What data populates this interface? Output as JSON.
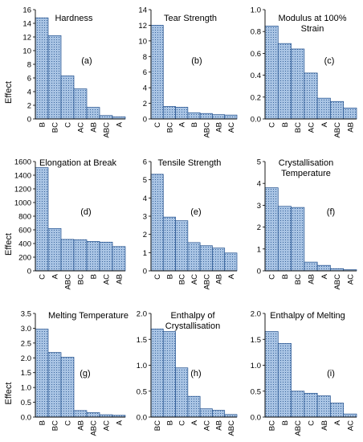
{
  "theme": {
    "bar_fill": "#a9c4e4",
    "bar_stroke": "#1f4e8c",
    "bar_pattern": "dotted"
  },
  "chart_data": [
    {
      "type": "bar",
      "title": [
        "Hardness"
      ],
      "panel_label": "(a)",
      "ylabel": "Effect",
      "ylim": [
        0,
        16
      ],
      "yticks": [
        "0",
        "2",
        "4",
        "6",
        "8",
        "10",
        "12",
        "14",
        "16"
      ],
      "categories": [
        "B",
        "BC",
        "C",
        "AC",
        "AB",
        "ABC",
        "A"
      ],
      "values": [
        14.8,
        12.2,
        6.3,
        4.4,
        1.7,
        0.5,
        0.3
      ]
    },
    {
      "type": "bar",
      "title": [
        "Tear Strength"
      ],
      "panel_label": "(b)",
      "ylabel": "",
      "ylim": [
        0,
        14
      ],
      "yticks": [
        "0",
        "2",
        "4",
        "6",
        "8",
        "10",
        "12",
        "14"
      ],
      "categories": [
        "C",
        "BC",
        "A",
        "B",
        "ABC",
        "AB",
        "AC"
      ],
      "values": [
        12.0,
        1.6,
        1.5,
        0.8,
        0.7,
        0.55,
        0.5
      ]
    },
    {
      "type": "bar",
      "title": [
        "Modulus at 100%",
        "Strain"
      ],
      "panel_label": "(c)",
      "ylabel": "",
      "ylim": [
        0,
        1.0
      ],
      "yticks": [
        "0.0",
        "0.2",
        "0.4",
        "0.6",
        "0.8",
        "1.0"
      ],
      "categories": [
        "C",
        "B",
        "BC",
        "AC",
        "A",
        "ABC",
        "AB"
      ],
      "values": [
        0.85,
        0.69,
        0.64,
        0.42,
        0.19,
        0.16,
        0.1
      ]
    },
    {
      "type": "bar",
      "title": [
        "Elongation at Break"
      ],
      "panel_label": "(d)",
      "ylabel": "Effect",
      "ylim": [
        0,
        1600
      ],
      "yticks": [
        "0",
        "200",
        "400",
        "600",
        "800",
        "1000",
        "1200",
        "1400",
        "1600"
      ],
      "categories": [
        "C",
        "A",
        "ABC",
        "BC",
        "B",
        "AC",
        "AB"
      ],
      "values": [
        1510,
        620,
        460,
        455,
        430,
        420,
        355
      ]
    },
    {
      "type": "bar",
      "title": [
        "Tensile Strength"
      ],
      "panel_label": "(e)",
      "ylabel": "",
      "ylim": [
        0,
        6
      ],
      "yticks": [
        "0",
        "1",
        "2",
        "3",
        "4",
        "5",
        "6"
      ],
      "categories": [
        "C",
        "B",
        "BC",
        "AC",
        "ABC",
        "AB",
        "A"
      ],
      "values": [
        5.3,
        2.95,
        2.75,
        1.55,
        1.38,
        1.25,
        0.98
      ]
    },
    {
      "type": "bar",
      "title": [
        "Crystallisation",
        "Temperature"
      ],
      "panel_label": "(f)",
      "ylabel": "",
      "ylim": [
        0,
        5
      ],
      "yticks": [
        "0",
        "1",
        "2",
        "3",
        "4",
        "5"
      ],
      "categories": [
        "C",
        "B",
        "BC",
        "AB",
        "A",
        "ABC",
        "AC"
      ],
      "values": [
        3.8,
        2.95,
        2.9,
        0.4,
        0.25,
        0.1,
        0.05
      ]
    },
    {
      "type": "bar",
      "title": [
        "Melting Temperature"
      ],
      "panel_label": "(g)",
      "ylabel": "Effect",
      "ylim": [
        0,
        3.5
      ],
      "yticks": [
        "0.0",
        "0.5",
        "1.0",
        "1.5",
        "2.0",
        "2.5",
        "3.0",
        "3.5"
      ],
      "categories": [
        "B",
        "BC",
        "C",
        "AB",
        "ABC",
        "AC",
        "A"
      ],
      "values": [
        2.97,
        2.18,
        2.02,
        0.22,
        0.15,
        0.08,
        0.06
      ]
    },
    {
      "type": "bar",
      "title": [
        "Enthalpy of",
        "Crystallisation"
      ],
      "panel_label": "(h)",
      "ylabel": "",
      "ylim": [
        0,
        2.0
      ],
      "yticks": [
        "0.0",
        "0.5",
        "1.0",
        "1.5",
        "2.0"
      ],
      "categories": [
        "BC",
        "B",
        "C",
        "A",
        "AC",
        "AB",
        "ABC"
      ],
      "values": [
        1.7,
        1.65,
        0.95,
        0.4,
        0.16,
        0.13,
        0.05
      ]
    },
    {
      "type": "bar",
      "title": [
        "Enthalpy of Melting"
      ],
      "panel_label": "(i)",
      "ylabel": "",
      "ylim": [
        0,
        2.0
      ],
      "yticks": [
        "0.0",
        "0.5",
        "1.0",
        "1.5",
        "2.0"
      ],
      "categories": [
        "BC",
        "B",
        "ABC",
        "C",
        "AB",
        "A",
        "AC"
      ],
      "values": [
        1.65,
        1.42,
        0.5,
        0.46,
        0.41,
        0.27,
        0.06
      ]
    }
  ]
}
